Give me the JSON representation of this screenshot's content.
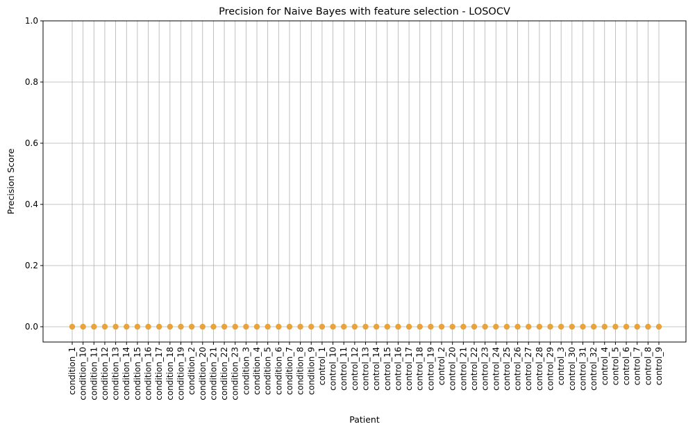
{
  "chart_data": {
    "type": "scatter",
    "title": "Precision for Naive Bayes with feature selection - LOSOCV",
    "xlabel": "Patient",
    "ylabel": "Precision Score",
    "ylim": [
      0,
      1
    ],
    "yticks": [
      "0.0",
      "0.2",
      "0.4",
      "0.6",
      "0.8",
      "1.0"
    ],
    "grid": true,
    "categories": [
      "condition_1",
      "condition_10",
      "condition_11",
      "condition_12",
      "condition_13",
      "condition_14",
      "condition_15",
      "condition_16",
      "condition_17",
      "condition_18",
      "condition_19",
      "condition_2",
      "condition_20",
      "condition_21",
      "condition_22",
      "condition_23",
      "condition_3",
      "condition_4",
      "condition_5",
      "condition_6",
      "condition_7",
      "condition_8",
      "condition_9",
      "control_1",
      "control_10",
      "control_11",
      "control_12",
      "control_13",
      "control_14",
      "control_15",
      "control_16",
      "control_17",
      "control_18",
      "control_19",
      "control_2",
      "control_20",
      "control_21",
      "control_22",
      "control_23",
      "control_24",
      "control_25",
      "control_26",
      "control_27",
      "control_28",
      "control_29",
      "control_3",
      "control_30",
      "control_31",
      "control_32",
      "control_4",
      "control_5",
      "control_6",
      "control_7",
      "control_8",
      "control_9"
    ],
    "values": [
      0,
      0,
      0,
      0,
      0,
      0,
      0,
      0,
      0,
      0,
      0,
      0,
      0,
      0,
      0,
      0,
      0,
      0,
      0,
      0,
      0,
      0,
      0,
      0,
      0,
      0,
      0,
      0,
      0,
      0,
      0,
      0,
      0,
      0,
      0,
      0,
      0,
      0,
      0,
      0,
      0,
      0,
      0,
      0,
      0,
      0,
      0,
      0,
      0,
      0,
      0,
      0,
      0,
      0,
      0
    ],
    "marker_color": "#e8a33d",
    "grid_color": "#b0b0b0"
  }
}
